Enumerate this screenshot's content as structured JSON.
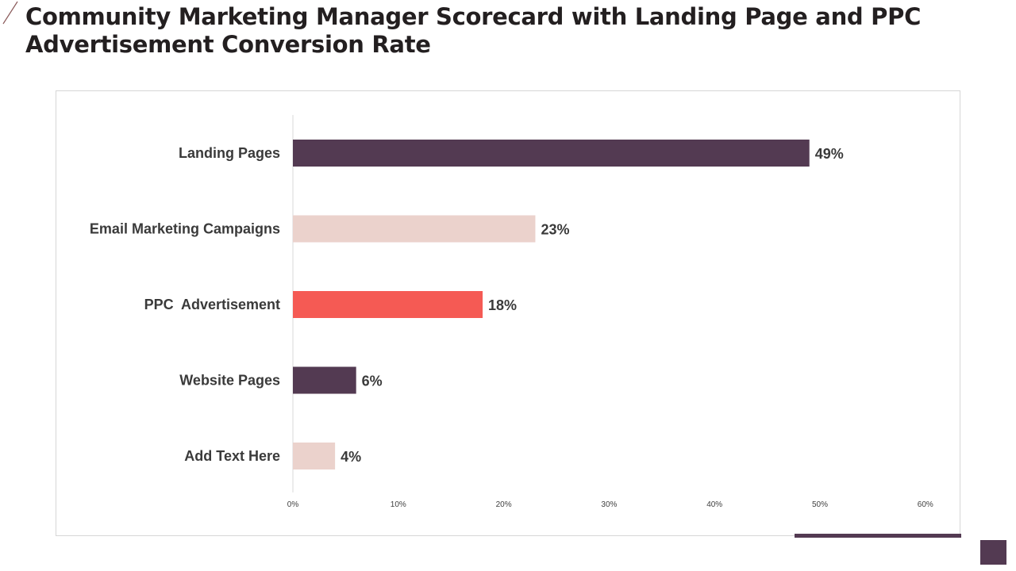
{
  "title": "Community Marketing Manager Scorecard with Landing Page and PPC Advertisement Conversion Rate",
  "chart_data": {
    "type": "bar",
    "orientation": "horizontal",
    "title": "",
    "xlabel": "",
    "ylabel": "",
    "categories": [
      "Landing Pages",
      "Email Marketing Campaigns",
      "PPC  Advertisement",
      "Website Pages",
      "Add Text Here"
    ],
    "values": [
      49,
      23,
      18,
      6,
      4
    ],
    "value_labels": [
      "49%",
      "23%",
      "18%",
      "6%",
      "4%"
    ],
    "colors": [
      "#533a52",
      "#ebd2cc",
      "#f55a54",
      "#533a52",
      "#ebd2cc"
    ],
    "xlim": [
      0,
      60
    ],
    "ticks": [
      0,
      10,
      20,
      30,
      40,
      50,
      60
    ],
    "tick_labels": [
      "0%",
      "10%",
      "20%",
      "30%",
      "40%",
      "50%",
      "60%"
    ],
    "grid": false,
    "legend": "none"
  },
  "theme": {
    "dark_plum": "#533a52",
    "blush": "#ebd2cc",
    "coral": "#f55a54",
    "title_color": "#231f20"
  }
}
